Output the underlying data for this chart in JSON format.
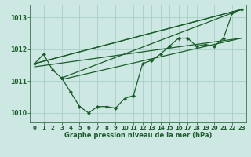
{
  "background_color": "#cde8e2",
  "grid_color": "#a8cfc8",
  "line_color": "#1a5c2a",
  "text_color": "#1a5c2a",
  "xlabel": "Graphe pression niveau de la mer (hPa)",
  "xlim": [
    -0.5,
    23.5
  ],
  "ylim": [
    1009.7,
    1013.4
  ],
  "yticks": [
    1010,
    1011,
    1012,
    1013
  ],
  "xticks": [
    0,
    1,
    2,
    3,
    4,
    5,
    6,
    7,
    8,
    9,
    10,
    11,
    12,
    13,
    14,
    15,
    16,
    17,
    18,
    19,
    20,
    21,
    22,
    23
  ],
  "series": [
    {
      "x": [
        0,
        1,
        2,
        3,
        4,
        5,
        6,
        7,
        8,
        9,
        10,
        11,
        12,
        13,
        14,
        15,
        16,
        17,
        18,
        19,
        20,
        21,
        22,
        23
      ],
      "y": [
        1011.55,
        1011.85,
        1011.35,
        1011.1,
        1010.65,
        1010.2,
        1010.0,
        1010.2,
        1010.2,
        1010.15,
        1010.45,
        1010.55,
        1011.55,
        1011.65,
        1011.85,
        1012.1,
        1012.35,
        1012.35,
        1012.1,
        1012.15,
        1012.1,
        1012.35,
        1013.15,
        1013.25
      ],
      "has_markers": true
    },
    {
      "x": [
        0,
        23
      ],
      "y": [
        1011.55,
        1013.25
      ],
      "has_markers": false
    },
    {
      "x": [
        0,
        23
      ],
      "y": [
        1011.55,
        1013.25
      ],
      "has_markers": false
    },
    {
      "x": [
        3,
        23
      ],
      "y": [
        1011.1,
        1013.25
      ],
      "has_markers": false
    },
    {
      "x": [
        3,
        23
      ],
      "y": [
        1011.05,
        1012.35
      ],
      "has_markers": false
    },
    {
      "x": [
        0,
        23
      ],
      "y": [
        1011.45,
        1012.35
      ],
      "has_markers": false
    }
  ]
}
